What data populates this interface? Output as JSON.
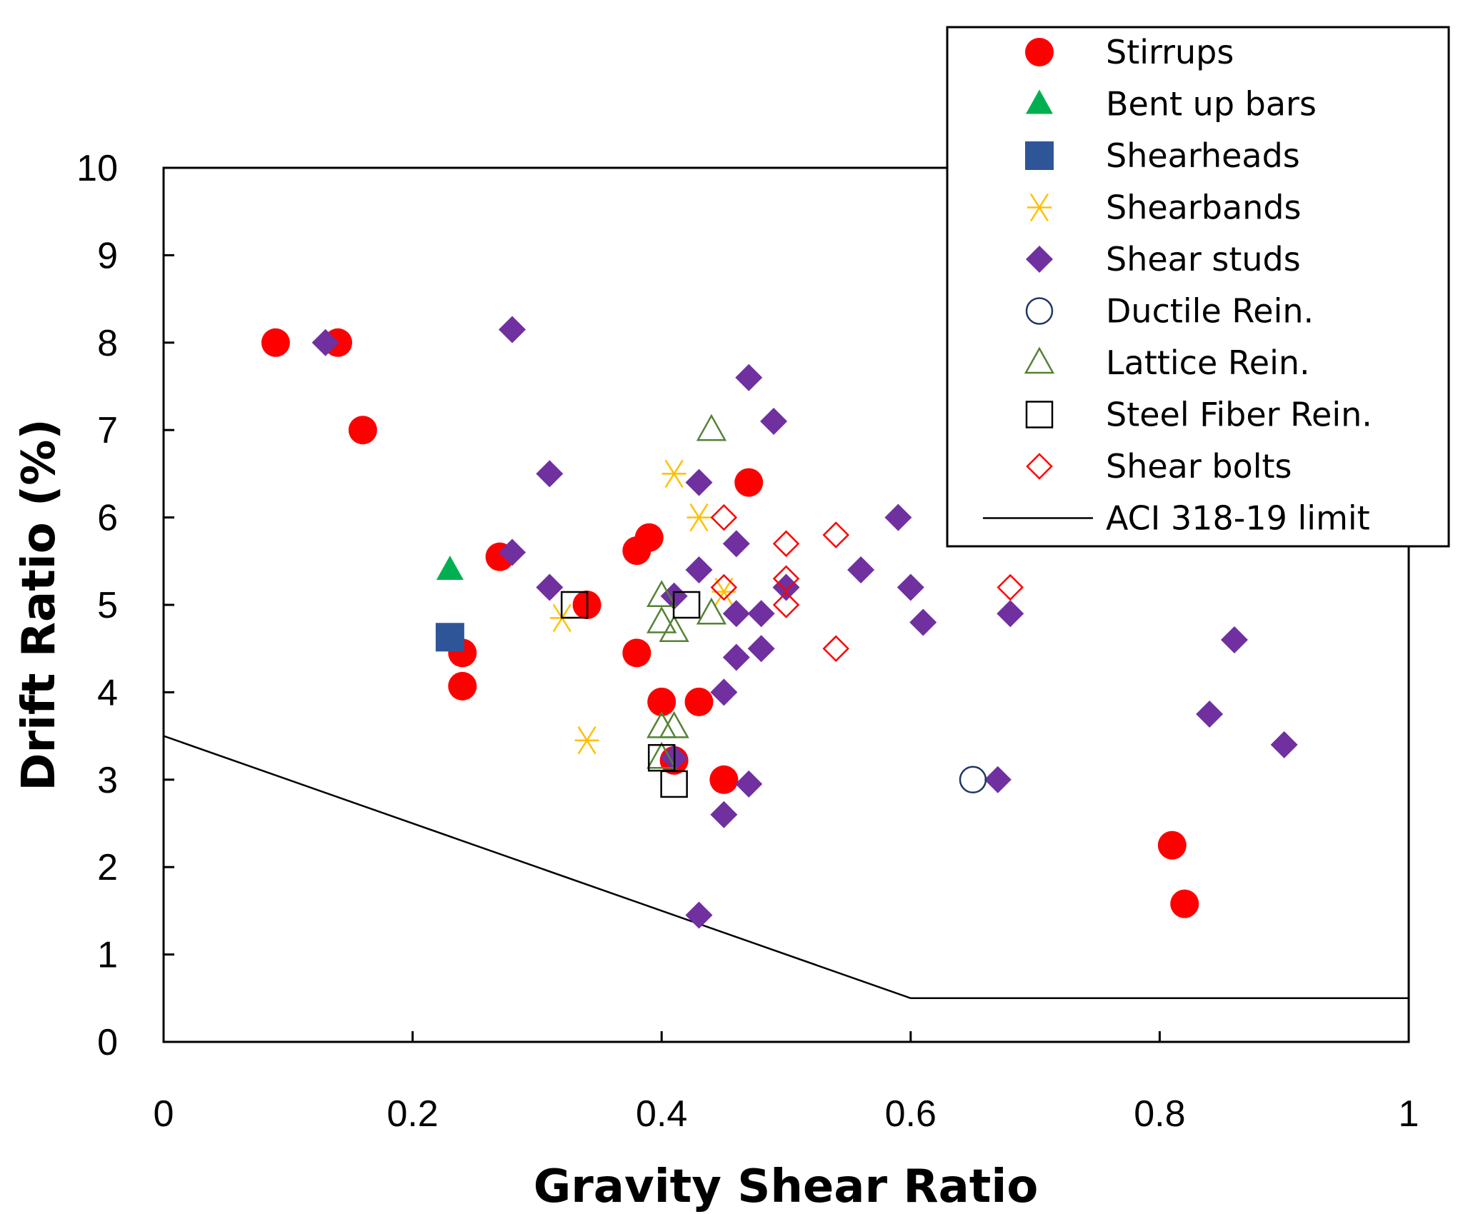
{
  "chart_data": {
    "type": "scatter",
    "xlabel": "Gravity Shear Ratio",
    "ylabel": "Drift Ratio (%)",
    "xlim": [
      0,
      1
    ],
    "ylim": [
      0,
      10
    ],
    "xticks": [
      "0",
      "0.2",
      "0.4",
      "0.6",
      "0.8",
      "1"
    ],
    "yticks": [
      "0",
      "1",
      "2",
      "3",
      "4",
      "5",
      "6",
      "7",
      "8",
      "9",
      "10"
    ],
    "grid": false,
    "legend_position": "top-right",
    "series": [
      {
        "name": "Stirrups",
        "marker": "circle-filled",
        "color": "#ff0000",
        "points": [
          [
            0.09,
            8.0
          ],
          [
            0.14,
            8.0
          ],
          [
            0.16,
            7.0
          ],
          [
            0.27,
            5.55
          ],
          [
            0.24,
            4.45
          ],
          [
            0.24,
            4.07
          ],
          [
            0.34,
            5.0
          ],
          [
            0.38,
            5.62
          ],
          [
            0.39,
            5.77
          ],
          [
            0.38,
            4.45
          ],
          [
            0.4,
            3.89
          ],
          [
            0.43,
            3.89
          ],
          [
            0.41,
            3.22
          ],
          [
            0.45,
            3.0
          ],
          [
            0.47,
            6.4
          ],
          [
            0.81,
            2.25
          ],
          [
            0.82,
            1.58
          ]
        ]
      },
      {
        "name": "Bent up bars",
        "marker": "triangle-filled",
        "color": "#00b050",
        "points": [
          [
            0.23,
            5.4
          ]
        ]
      },
      {
        "name": "Shearheads",
        "marker": "square-filled",
        "color": "#2e5597",
        "points": [
          [
            0.23,
            4.63
          ]
        ]
      },
      {
        "name": "Shearbands",
        "marker": "asterisk",
        "color": "#ffc000",
        "points": [
          [
            0.32,
            4.85
          ],
          [
            0.34,
            3.45
          ],
          [
            0.41,
            6.5
          ],
          [
            0.43,
            6.0
          ],
          [
            0.45,
            5.15
          ]
        ]
      },
      {
        "name": "Shear studs",
        "marker": "diamond-filled",
        "color": "#7030a0",
        "points": [
          [
            0.13,
            8.0
          ],
          [
            0.28,
            8.15
          ],
          [
            0.28,
            5.6
          ],
          [
            0.31,
            6.5
          ],
          [
            0.31,
            5.2
          ],
          [
            0.41,
            5.1
          ],
          [
            0.41,
            3.25
          ],
          [
            0.43,
            6.4
          ],
          [
            0.43,
            5.4
          ],
          [
            0.43,
            1.45
          ],
          [
            0.45,
            4.0
          ],
          [
            0.45,
            2.6
          ],
          [
            0.46,
            5.7
          ],
          [
            0.46,
            4.9
          ],
          [
            0.46,
            4.4
          ],
          [
            0.47,
            7.6
          ],
          [
            0.47,
            2.95
          ],
          [
            0.48,
            4.9
          ],
          [
            0.48,
            4.5
          ],
          [
            0.49,
            7.1
          ],
          [
            0.5,
            5.2
          ],
          [
            0.56,
            5.4
          ],
          [
            0.59,
            6.0
          ],
          [
            0.6,
            5.2
          ],
          [
            0.61,
            4.8
          ],
          [
            0.67,
            3.0
          ],
          [
            0.68,
            4.9
          ],
          [
            0.84,
            3.75
          ],
          [
            0.86,
            4.6
          ],
          [
            0.9,
            3.4
          ]
        ]
      },
      {
        "name": "Ductile Rein.",
        "marker": "circle-open",
        "color": "#1f3864",
        "points": [
          [
            0.65,
            3.0
          ]
        ]
      },
      {
        "name": "Lattice Rein.",
        "marker": "triangle-open",
        "color": "#548235",
        "points": [
          [
            0.44,
            7.0
          ],
          [
            0.4,
            5.1
          ],
          [
            0.4,
            4.8
          ],
          [
            0.41,
            4.7
          ],
          [
            0.44,
            4.9
          ],
          [
            0.4,
            3.6
          ],
          [
            0.41,
            3.6
          ],
          [
            0.4,
            3.25
          ]
        ]
      },
      {
        "name": "Steel Fiber Rein.",
        "marker": "square-open",
        "color": "#000000",
        "points": [
          [
            0.33,
            5.0
          ],
          [
            0.42,
            5.0
          ],
          [
            0.4,
            3.25
          ],
          [
            0.41,
            2.95
          ]
        ]
      },
      {
        "name": "Shear bolts",
        "marker": "diamond-open",
        "color": "#ff0000",
        "points": [
          [
            0.45,
            6.0
          ],
          [
            0.45,
            5.2
          ],
          [
            0.5,
            5.7
          ],
          [
            0.5,
            5.3
          ],
          [
            0.5,
            5.0
          ],
          [
            0.54,
            5.8
          ],
          [
            0.54,
            4.5
          ],
          [
            0.68,
            5.2
          ]
        ]
      }
    ],
    "limit_line": {
      "name": "ACI 318-19 limit",
      "color": "#000000",
      "points": [
        [
          0,
          3.5
        ],
        [
          0.6,
          0.5
        ],
        [
          1.0,
          0.5
        ]
      ]
    }
  }
}
